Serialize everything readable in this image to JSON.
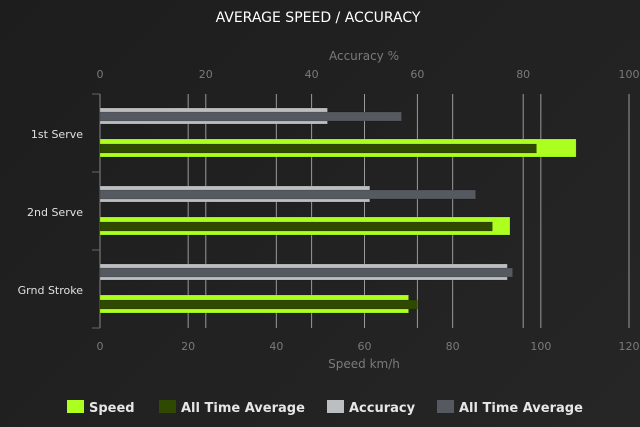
{
  "chart_data": {
    "type": "bar",
    "orientation": "horizontal",
    "title": "AVERAGE SPEED / ACCURACY",
    "categories": [
      "1st Serve",
      "2nd Serve",
      "Grnd Stroke"
    ],
    "x_top": {
      "label": "Accuracy %",
      "range": [
        0,
        100
      ],
      "ticks": [
        0,
        20,
        40,
        60,
        80,
        100
      ]
    },
    "x_bottom": {
      "label": "Speed km/h",
      "range": [
        0,
        120
      ],
      "ticks": [
        0,
        20,
        40,
        60,
        80,
        100,
        120
      ]
    },
    "series": [
      {
        "name": "Speed",
        "axis": "bottom",
        "color": "#adff1f",
        "values": [
          108,
          93,
          70
        ]
      },
      {
        "name": "All Time Average",
        "axis": "bottom",
        "color": "#2f4a00",
        "values": [
          99,
          89,
          72
        ]
      },
      {
        "name": "Accuracy",
        "axis": "top",
        "color": "#bcbec0",
        "values": [
          43,
          51,
          77
        ]
      },
      {
        "name": "All Time Average",
        "axis": "top",
        "color": "#555a61",
        "values": [
          57,
          71,
          78
        ]
      }
    ],
    "grid": true,
    "legend": "bottom"
  }
}
